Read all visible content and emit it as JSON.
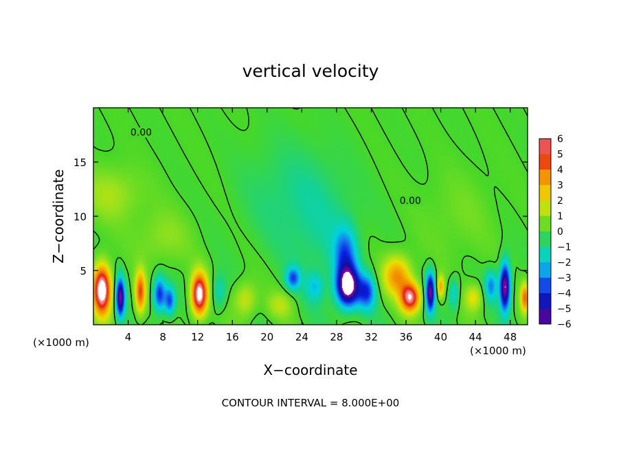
{
  "chart_data": {
    "type": "heatmap",
    "title": "vertical velocity",
    "xlabel": "X−coordinate",
    "ylabel": "Z−coordinate",
    "x_unit_label": "(×1000 m)",
    "x_unit_label_right": "(×1000 m)",
    "xlim": [
      0,
      50
    ],
    "ylim": [
      0,
      20
    ],
    "x_ticks": [
      4,
      8,
      12,
      16,
      20,
      24,
      28,
      32,
      36,
      40,
      44,
      48
    ],
    "y_ticks": [
      5,
      10,
      15
    ],
    "colorbar": {
      "min": -6,
      "max": 6,
      "ticks": [
        6,
        5,
        4,
        3,
        2,
        1,
        0,
        -1,
        -2,
        -3,
        -4,
        -5,
        -6
      ],
      "tick_labels": [
        "6",
        "5",
        "4",
        "3",
        "2",
        "1",
        "0",
        "−1",
        "−2",
        "−3",
        "−4",
        "−5",
        "−6"
      ]
    },
    "contour_labels": [
      {
        "text": "0.00",
        "x": 5.5,
        "y": 17.5
      },
      {
        "text": "0.00",
        "x": 36.5,
        "y": 11.2
      }
    ],
    "footer": "CONTOUR INTERVAL = 8.000E+00",
    "features": [
      {
        "x": 1.0,
        "z": 3.2,
        "amp": 7.5,
        "sx": 1.0,
        "sz": 2.2
      },
      {
        "x": 3.1,
        "z": 2.5,
        "amp": -6.0,
        "sx": 0.5,
        "sz": 1.8
      },
      {
        "x": 5.4,
        "z": 3.0,
        "amp": 4.5,
        "sx": 0.6,
        "sz": 1.9
      },
      {
        "x": 7.6,
        "z": 2.8,
        "amp": -4.0,
        "sx": 0.7,
        "sz": 1.6
      },
      {
        "x": 8.8,
        "z": 2.2,
        "amp": -3.5,
        "sx": 0.6,
        "sz": 1.3
      },
      {
        "x": 12.2,
        "z": 2.8,
        "amp": 7.0,
        "sx": 0.9,
        "sz": 1.9
      },
      {
        "x": 14.5,
        "z": 3.0,
        "amp": -1.5,
        "sx": 0.8,
        "sz": 1.6
      },
      {
        "x": 17.5,
        "z": 2.3,
        "amp": 1.8,
        "sx": 1.3,
        "sz": 1.6
      },
      {
        "x": 21.5,
        "z": 1.8,
        "amp": 1.3,
        "sx": 1.5,
        "sz": 1.2
      },
      {
        "x": 23.0,
        "z": 4.3,
        "amp": -3.2,
        "sx": 0.8,
        "sz": 1.0
      },
      {
        "x": 25.5,
        "z": 3.5,
        "amp": -1.8,
        "sx": 1.0,
        "sz": 1.3
      },
      {
        "x": 29.3,
        "z": 3.5,
        "amp": -7.0,
        "sx": 1.3,
        "sz": 1.8
      },
      {
        "x": 29.0,
        "z": 6.5,
        "amp": -3.0,
        "sx": 1.3,
        "sz": 2.5
      },
      {
        "x": 31.5,
        "z": 3.0,
        "amp": -3.5,
        "sx": 1.0,
        "sz": 1.6
      },
      {
        "x": 26.5,
        "z": 8.5,
        "amp": -0.8,
        "sx": 4.0,
        "sz": 6.0
      },
      {
        "x": 35.0,
        "z": 4.5,
        "amp": 3.5,
        "sx": 1.6,
        "sz": 1.8
      },
      {
        "x": 36.5,
        "z": 2.5,
        "amp": 6.0,
        "sx": 1.1,
        "sz": 1.3
      },
      {
        "x": 38.8,
        "z": 3.0,
        "amp": -6.0,
        "sx": 0.5,
        "sz": 1.8
      },
      {
        "x": 40.0,
        "z": 3.5,
        "amp": 3.0,
        "sx": 0.4,
        "sz": 1.0
      },
      {
        "x": 41.5,
        "z": 2.8,
        "amp": -2.0,
        "sx": 0.6,
        "sz": 1.4
      },
      {
        "x": 43.8,
        "z": 2.5,
        "amp": 2.0,
        "sx": 1.0,
        "sz": 1.2
      },
      {
        "x": 45.8,
        "z": 3.6,
        "amp": -2.8,
        "sx": 0.7,
        "sz": 1.4
      },
      {
        "x": 47.4,
        "z": 3.5,
        "amp": -6.5,
        "sx": 0.6,
        "sz": 2.2
      },
      {
        "x": 49.7,
        "z": 2.5,
        "amp": 4.0,
        "sx": 0.5,
        "sz": 1.3
      },
      {
        "x": 2.0,
        "z": 12.0,
        "amp": 1.2,
        "sx": 3.5,
        "sz": 2.5
      },
      {
        "x": 8.0,
        "z": 8.0,
        "amp": 0.9,
        "sx": 3.0,
        "sz": 2.5
      },
      {
        "x": 22.0,
        "z": 12.0,
        "amp": -0.7,
        "sx": 5.0,
        "sz": 5.0
      },
      {
        "x": 42.0,
        "z": 10.0,
        "amp": 0.5,
        "sx": 4.0,
        "sz": 4.0
      }
    ]
  }
}
